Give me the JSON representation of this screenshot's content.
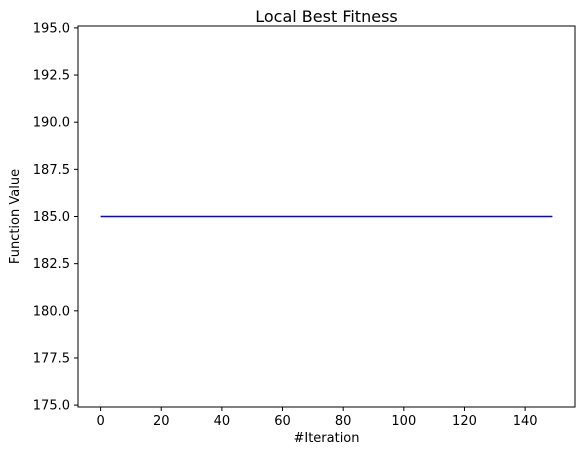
{
  "chart_data": {
    "type": "line",
    "title": "Local Best Fitness",
    "xlabel": "#Iteration",
    "ylabel": "Function Value",
    "xlim": [
      -7.45,
      156.45
    ],
    "ylim": [
      174.9,
      195.1
    ],
    "x_ticks": [
      0,
      20,
      40,
      60,
      80,
      100,
      120,
      140
    ],
    "y_ticks": [
      175.0,
      177.5,
      180.0,
      182.5,
      185.0,
      187.5,
      190.0,
      192.5,
      195.0
    ],
    "x_tick_labels": [
      "0",
      "20",
      "40",
      "60",
      "80",
      "100",
      "120",
      "140"
    ],
    "y_tick_labels": [
      "175.0",
      "177.5",
      "180.0",
      "182.5",
      "185.0",
      "187.5",
      "190.0",
      "192.5",
      "195.0"
    ],
    "grid": false,
    "legend": false,
    "series": [
      {
        "color": "#0000ff",
        "x": [
          0,
          149
        ],
        "y": [
          185,
          185
        ]
      }
    ]
  }
}
